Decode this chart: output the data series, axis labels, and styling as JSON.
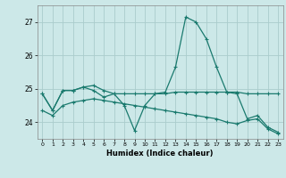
{
  "bg_color": "#cce8e8",
  "grid_color": "#aacccc",
  "line_color": "#1a7a6e",
  "xlabel": "Humidex (Indice chaleur)",
  "ylim": [
    23.5,
    27.5
  ],
  "xlim": [
    -0.5,
    23.5
  ],
  "yticks": [
    24,
    25,
    26,
    27
  ],
  "xticks": [
    0,
    1,
    2,
    3,
    4,
    5,
    6,
    7,
    8,
    9,
    10,
    11,
    12,
    13,
    14,
    15,
    16,
    17,
    18,
    19,
    20,
    21,
    22,
    23
  ],
  "curve1_x": [
    0,
    1,
    2,
    3,
    4,
    5,
    6,
    7,
    8,
    9,
    10,
    11,
    12,
    13,
    14,
    15,
    16,
    17,
    18,
    19,
    20,
    21,
    22,
    23
  ],
  "curve1_y": [
    24.85,
    24.35,
    24.95,
    24.95,
    25.05,
    25.1,
    24.95,
    24.85,
    24.85,
    24.85,
    24.85,
    24.85,
    24.85,
    24.9,
    24.9,
    24.9,
    24.9,
    24.9,
    24.9,
    24.9,
    24.85,
    24.85,
    24.85,
    24.85
  ],
  "curve2_x": [
    0,
    1,
    2,
    3,
    4,
    5,
    6,
    7,
    8,
    9,
    10,
    11,
    12,
    13,
    14,
    15,
    16,
    17,
    18,
    19,
    20,
    21,
    22,
    23
  ],
  "curve2_y": [
    24.85,
    24.35,
    24.95,
    24.95,
    25.05,
    24.95,
    24.75,
    24.85,
    24.5,
    23.75,
    24.5,
    24.85,
    24.9,
    25.65,
    27.15,
    27.0,
    26.5,
    25.65,
    24.9,
    24.85,
    24.1,
    24.2,
    23.85,
    23.7
  ],
  "curve3_x": [
    0,
    1,
    2,
    3,
    4,
    5,
    6,
    7,
    8,
    9,
    10,
    11,
    12,
    13,
    14,
    15,
    16,
    17,
    18,
    19,
    20,
    21,
    22,
    23
  ],
  "curve3_y": [
    24.35,
    24.2,
    24.5,
    24.6,
    24.65,
    24.7,
    24.65,
    24.6,
    24.55,
    24.5,
    24.45,
    24.4,
    24.35,
    24.3,
    24.25,
    24.2,
    24.15,
    24.1,
    24.0,
    23.95,
    24.05,
    24.1,
    23.8,
    23.65
  ]
}
